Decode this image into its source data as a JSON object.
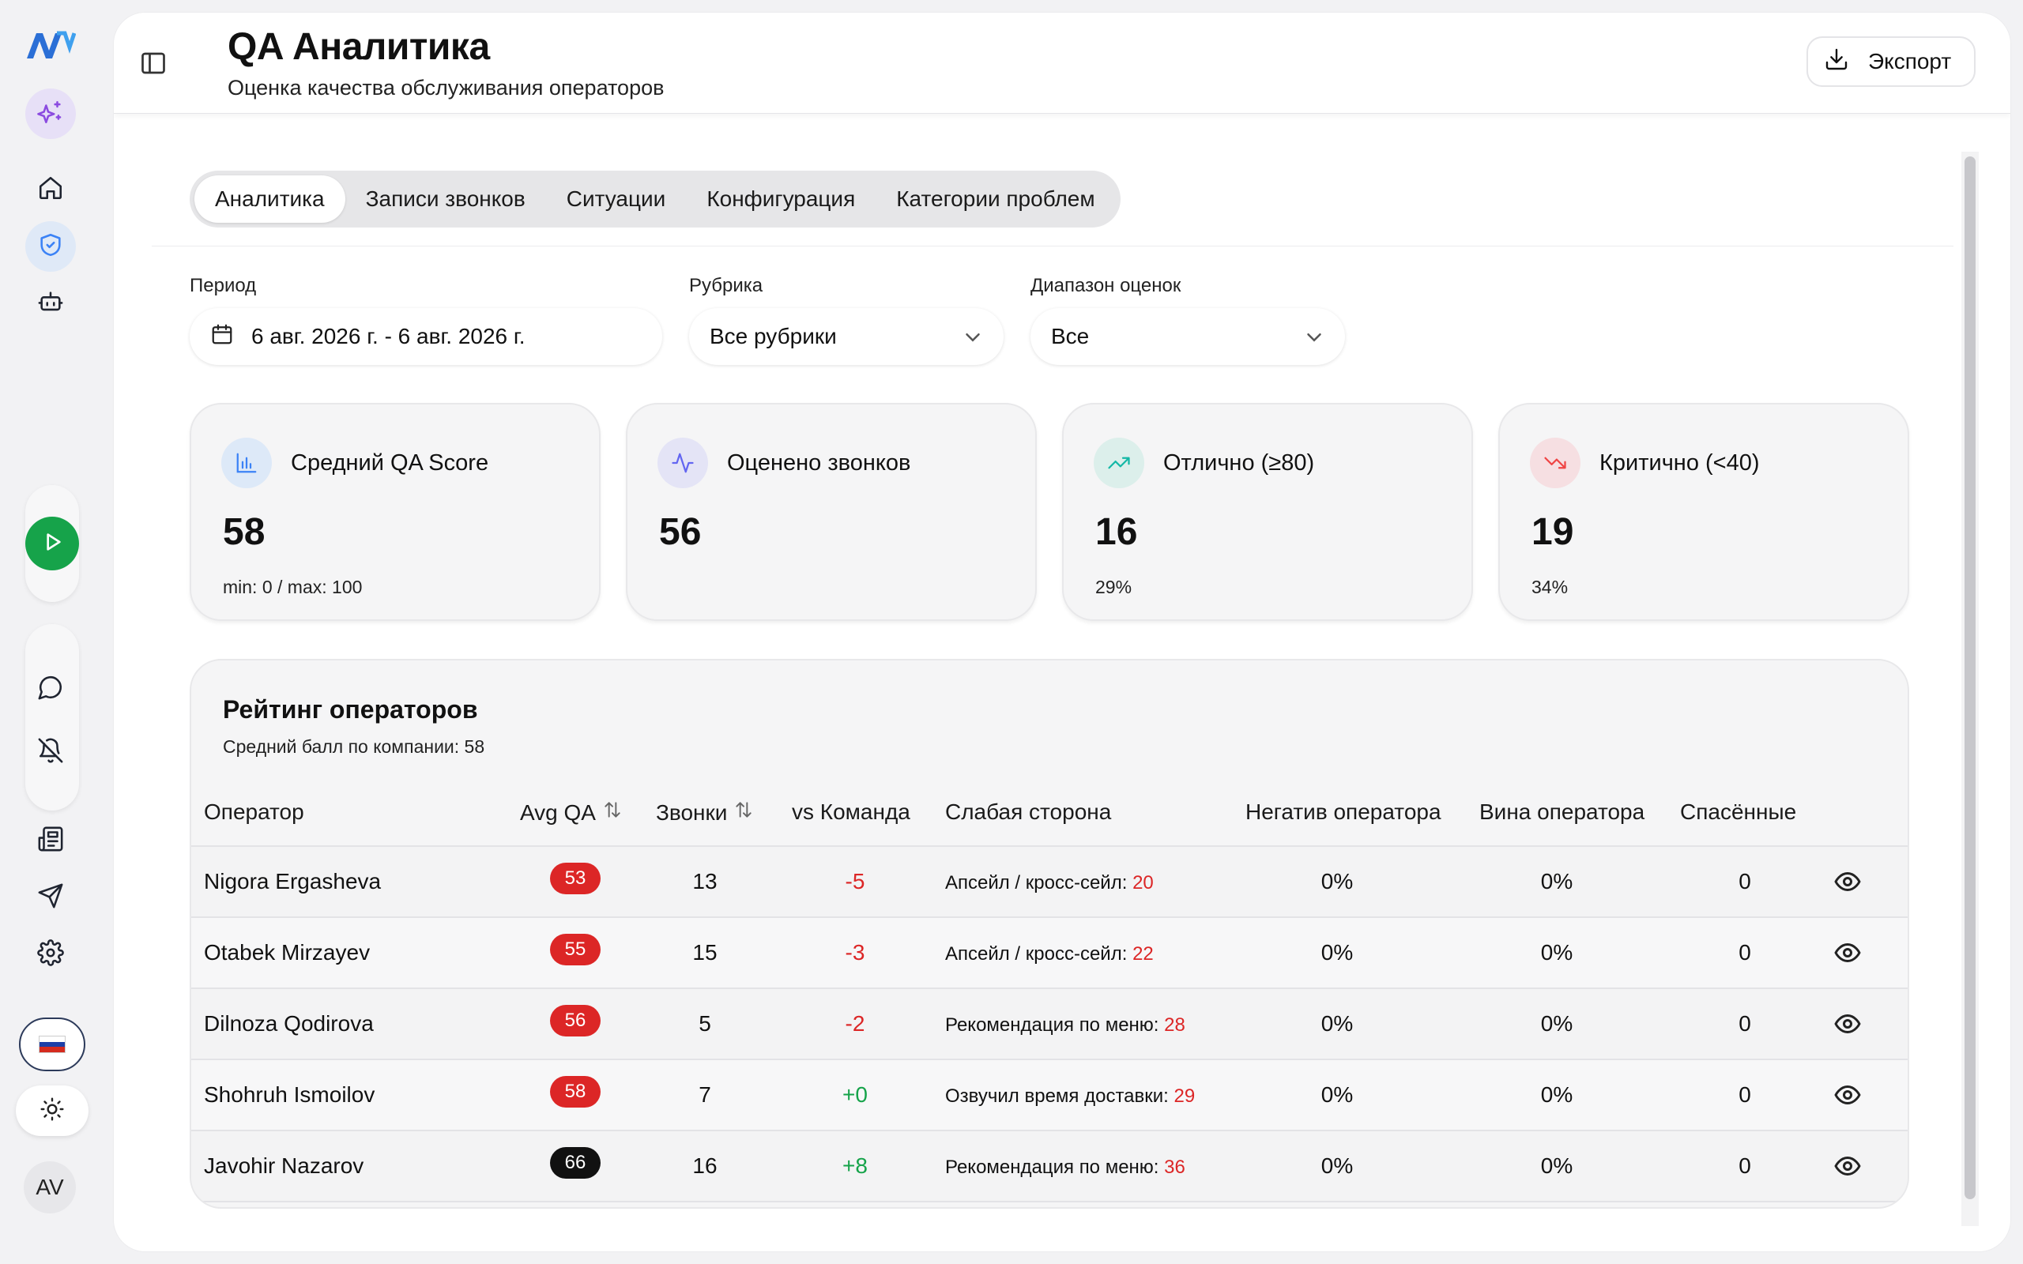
{
  "app": {
    "logo_text": "AV",
    "avatar_initials": "AV"
  },
  "header": {
    "title": "QA Аналитика",
    "subtitle": "Оценка качества обслуживания операторов",
    "export_label": "Экспорт"
  },
  "tabs": [
    {
      "label": "Аналитика",
      "active": true
    },
    {
      "label": "Записи звонков",
      "active": false
    },
    {
      "label": "Ситуации",
      "active": false
    },
    {
      "label": "Конфигурация",
      "active": false
    },
    {
      "label": "Категории проблем",
      "active": false
    }
  ],
  "filters": {
    "period": {
      "label": "Период",
      "value": "6 авг. 2026 г. - 6 авг. 2026 г."
    },
    "rubric": {
      "label": "Рубрика",
      "value": "Все рубрики"
    },
    "score_range": {
      "label": "Диапазон оценок",
      "value": "Все"
    }
  },
  "stats": [
    {
      "icon": "bar-chart-icon",
      "title": "Средний QA Score",
      "value": "58",
      "sub": "min: 0 / max: 100",
      "color": "#3b82f6"
    },
    {
      "icon": "activity-icon",
      "title": "Оценено звонков",
      "value": "56",
      "sub": "",
      "color": "#6366f1"
    },
    {
      "icon": "trending-up-icon",
      "title": "Отлично (≥80)",
      "value": "16",
      "sub": "29%",
      "color": "#14b8a6"
    },
    {
      "icon": "trending-down-icon",
      "title": "Критично (<40)",
      "value": "19",
      "sub": "34%",
      "color": "#ef4444"
    }
  ],
  "ranking": {
    "title": "Рейтинг операторов",
    "subtitle": "Средний балл по компании: 58",
    "columns": [
      "Оператор",
      "Avg QA",
      "Звонки",
      "vs Команда",
      "Слабая сторона",
      "Негатив оператора",
      "Вина оператора",
      "Спасённые"
    ],
    "rows": [
      {
        "operator": "Nigora Ergasheva",
        "avg_qa": "53",
        "calls": "13",
        "vs_team": "-5",
        "weak_label": "Апсейл / кросс-сейл:",
        "weak_score": "20",
        "negative": "0%",
        "fault": "0%",
        "saved": "0",
        "badge_color": "#dc2626",
        "delta_color": "#dc2626"
      },
      {
        "operator": "Otabek Mirzayev",
        "avg_qa": "55",
        "calls": "15",
        "vs_team": "-3",
        "weak_label": "Апсейл / кросс-сейл:",
        "weak_score": "22",
        "negative": "0%",
        "fault": "0%",
        "saved": "0",
        "badge_color": "#dc2626",
        "delta_color": "#dc2626"
      },
      {
        "operator": "Dilnoza Qodirova",
        "avg_qa": "56",
        "calls": "5",
        "vs_team": "-2",
        "weak_label": "Рекомендация по меню:",
        "weak_score": "28",
        "negative": "0%",
        "fault": "0%",
        "saved": "0",
        "badge_color": "#dc2626",
        "delta_color": "#dc2626"
      },
      {
        "operator": "Shohruh Ismoilov",
        "avg_qa": "58",
        "calls": "7",
        "vs_team": "+0",
        "weak_label": "Озвучил время доставки:",
        "weak_score": "29",
        "negative": "0%",
        "fault": "0%",
        "saved": "0",
        "badge_color": "#dc2626",
        "delta_color": "#16a34a"
      },
      {
        "operator": "Javohir Nazarov",
        "avg_qa": "66",
        "calls": "16",
        "vs_team": "+8",
        "weak_label": "Рекомендация по меню:",
        "weak_score": "36",
        "negative": "0%",
        "fault": "0%",
        "saved": "0",
        "badge_color": "#111111",
        "delta_color": "#16a34a"
      }
    ]
  }
}
